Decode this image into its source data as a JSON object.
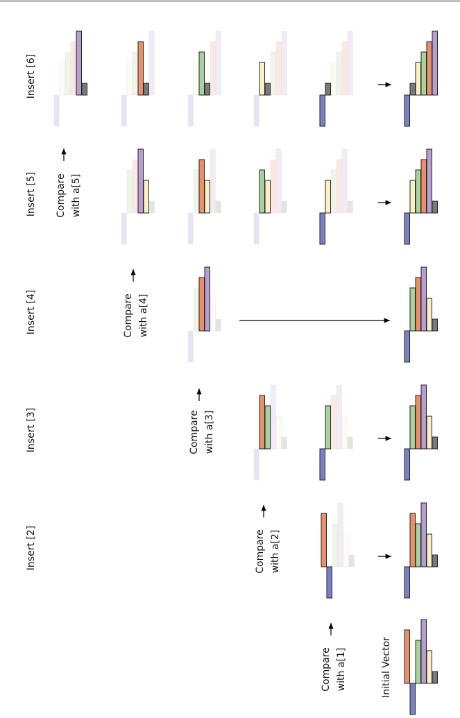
{
  "insert_labels": [
    "Insert [2]",
    "Insert [3]",
    "Insert [4]",
    "Insert [5]",
    "Insert [6]"
  ],
  "compare_labels": [
    {
      "line1": "Compare",
      "line2": "with a[1]"
    },
    {
      "line1": "Compare",
      "line2": "with a[2]"
    },
    {
      "line1": "Compare",
      "line2": "with a[3]"
    },
    {
      "line1": "Compare",
      "line2": "with a[4]"
    },
    {
      "line1": "Compare",
      "line2": "with a[5]"
    }
  ],
  "initial_label": "Initial Vector",
  "vector": {
    "values": [
      77,
      -45,
      62,
      92,
      47,
      17
    ],
    "colors": [
      "#e8906c",
      "#7b80c2",
      "#a9d19f",
      "#b79ed2",
      "#fbefc6",
      "#7a7a7a"
    ]
  }
}
